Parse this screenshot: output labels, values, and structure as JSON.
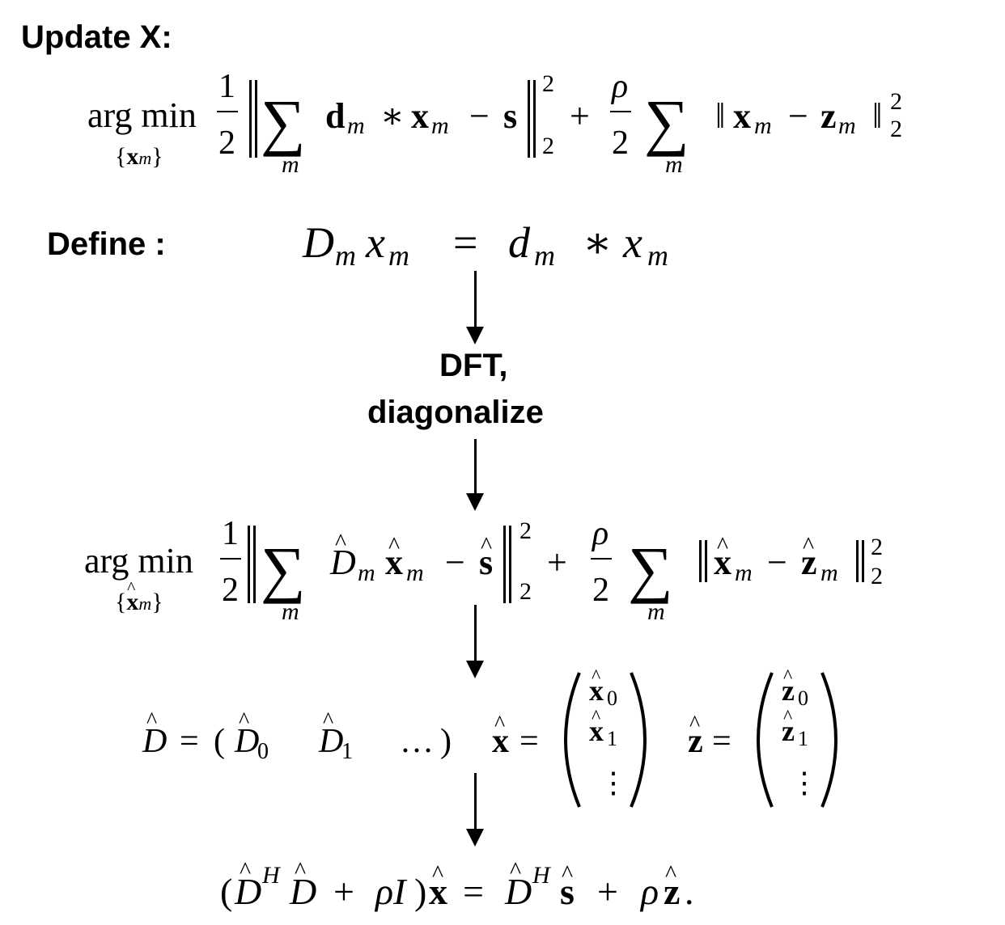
{
  "headings": {
    "update_x": "Update X:",
    "define": "Define :"
  },
  "step_label": {
    "line1": "DFT,",
    "line2": "diagonalize"
  },
  "equations": {
    "argmin": "arg min",
    "sub_x": "{x",
    "sub_close": "}",
    "one": "1",
    "two": "2",
    "rho": "ρ",
    "sum": "∑",
    "m": "m",
    "d": "d",
    "x": "x",
    "s": "s",
    "z": "z",
    "conv": "∗",
    "minus": "−",
    "plus": "+",
    "equals": "=",
    "D": "D",
    "sup_two": "2",
    "sub_two": "2",
    "norm": "‖",
    "hat": "^",
    "zero": "0",
    "one_idx": "1",
    "dots": "…",
    "vdots": "⋮",
    "H": "H",
    "I": "I",
    "lparen": "(",
    "rparen": ")",
    "period": "."
  }
}
